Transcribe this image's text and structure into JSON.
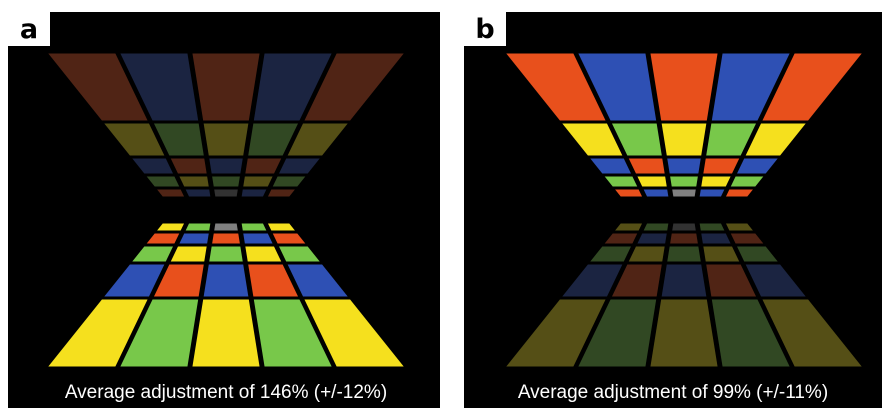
{
  "panels": [
    {
      "label": "a",
      "caption": "Average adjustment of 146% (+/-12%)"
    },
    {
      "label": "b",
      "caption": "Average adjustment of 99% (+/-11%)"
    }
  ]
}
